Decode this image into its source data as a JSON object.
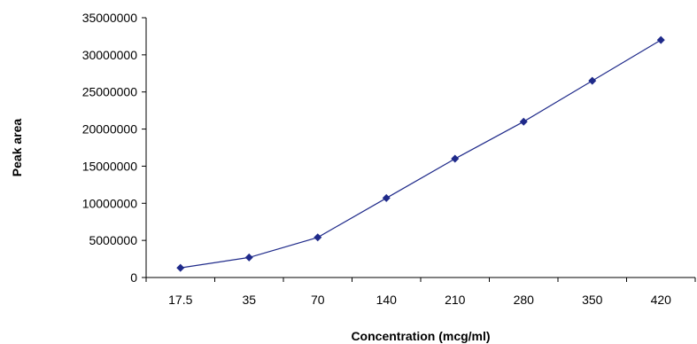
{
  "chart_data": {
    "type": "line",
    "title": "",
    "xlabel": "Concentration (mcg/ml)",
    "ylabel": "Peak area",
    "categories": [
      "17.5",
      "35",
      "70",
      "140",
      "210",
      "280",
      "350",
      "420"
    ],
    "series": [
      {
        "values": [
          1300000,
          2700000,
          5400000,
          10700000,
          16000000,
          21000000,
          26500000,
          32000000
        ]
      }
    ],
    "ylim": [
      0,
      35000000
    ],
    "ytick_step": 5000000,
    "y_tick_labels": [
      "0",
      "5000000",
      "10000000",
      "15000000",
      "20000000",
      "25000000",
      "30000000",
      "35000000"
    ],
    "grid": false,
    "legend": "none",
    "line_color": "#1f2a8a",
    "marker": "diamond"
  }
}
